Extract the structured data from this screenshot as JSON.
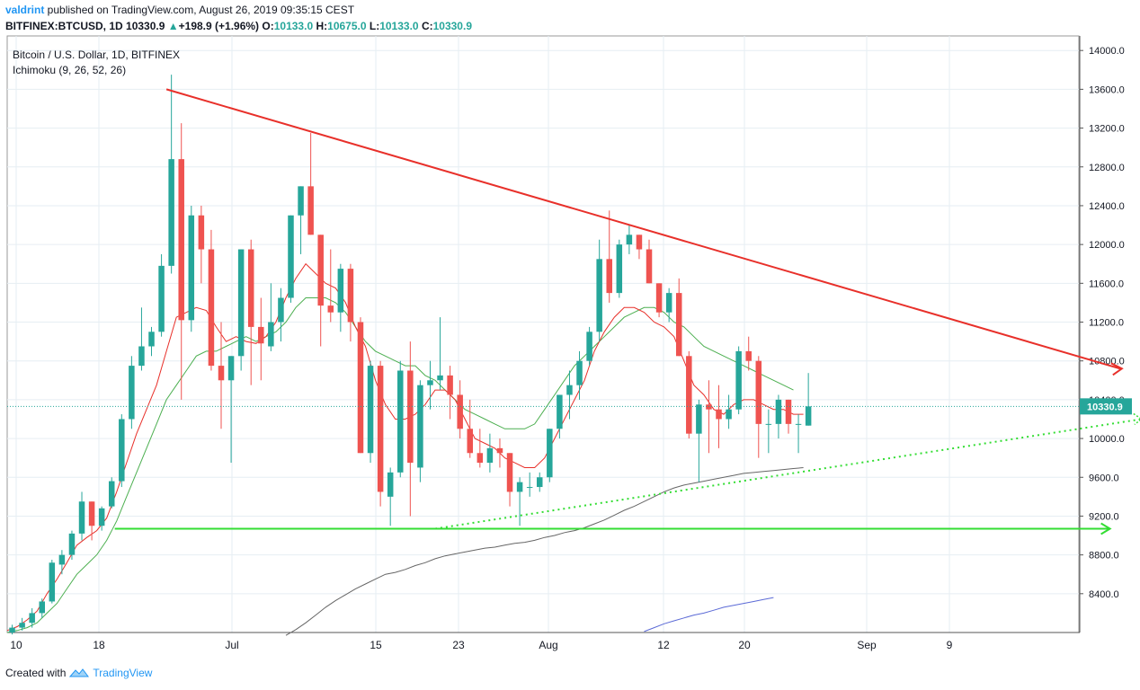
{
  "header": {
    "author": "valdrint",
    "published_text": " published on TradingView.com, August 26, 2019 09:35:15 CEST",
    "symbol": "BITFINEX:BTCUSD, 1D",
    "last": "10330.9",
    "change": "+198.9 (+1.96%)",
    "o_label": "O:",
    "o": "10133.0",
    "h_label": "H:",
    "h": "10675.0",
    "l_label": "L:",
    "l": "10133.0",
    "c_label": "C:",
    "c": "10330.9"
  },
  "legend": {
    "title": "Bitcoin / U.S. Dollar, 1D, BITFINEX",
    "indicator": "Ichimoku (9, 26, 52, 26)"
  },
  "footer": {
    "created_with": "Created with",
    "brand": "TradingView"
  },
  "colors": {
    "up": "#26a69a",
    "down": "#ef5350",
    "resistance": "#e8302a",
    "support": "#33dd33",
    "price_line": "#26a69a",
    "ma_red": "#e8302a",
    "ma_green": "#4caf50",
    "ma_gray": "#666666",
    "ma_blue": "#5b6ad6"
  },
  "chart_data": {
    "type": "candlestick",
    "y_ticks": [
      "14000.0",
      "13600.0",
      "13200.0",
      "12800.0",
      "12400.0",
      "12000.0",
      "11600.0",
      "11200.0",
      "10800.0",
      "10400.0",
      "10000.0",
      "9600.0",
      "9200.0",
      "8800.0",
      "8400.0"
    ],
    "x_ticks": [
      "10",
      "18",
      "Jul",
      "15",
      "23",
      "Aug",
      "12",
      "20",
      "Sep",
      "9"
    ],
    "ylim": [
      8000,
      14150
    ],
    "last_price_label": "10330.9",
    "candles": [
      [
        8000,
        8080,
        7980,
        8050
      ],
      [
        8050,
        8150,
        8020,
        8100
      ],
      [
        8100,
        8250,
        8050,
        8200
      ],
      [
        8200,
        8350,
        8150,
        8320
      ],
      [
        8320,
        8750,
        8300,
        8720
      ],
      [
        8700,
        8850,
        8600,
        8800
      ],
      [
        8800,
        9050,
        8750,
        9020
      ],
      [
        9020,
        9450,
        8950,
        9350
      ],
      [
        9350,
        9350,
        8950,
        9100
      ],
      [
        9100,
        9300,
        9050,
        9280
      ],
      [
        9300,
        9600,
        9280,
        9560
      ],
      [
        9560,
        10250,
        9500,
        10200
      ],
      [
        10200,
        10850,
        10100,
        10750
      ],
      [
        10750,
        11350,
        10700,
        10950
      ],
      [
        10950,
        11150,
        10850,
        11100
      ],
      [
        11100,
        11900,
        11050,
        11780
      ],
      [
        11780,
        13750,
        11700,
        12880
      ],
      [
        12880,
        13250,
        10400,
        11220
      ],
      [
        11220,
        12400,
        11100,
        12300
      ],
      [
        12300,
        12400,
        11600,
        11950
      ],
      [
        11950,
        12150,
        10700,
        10750
      ],
      [
        10750,
        11200,
        10100,
        10600
      ],
      [
        10600,
        10850,
        9750,
        10850
      ],
      [
        10850,
        11950,
        10700,
        11950
      ],
      [
        11950,
        12050,
        10550,
        11150
      ],
      [
        11150,
        11450,
        10600,
        10980
      ],
      [
        10950,
        11600,
        10900,
        11200
      ],
      [
        11200,
        11550,
        11000,
        11450
      ],
      [
        11450,
        12300,
        11400,
        12300
      ],
      [
        12300,
        12600,
        11900,
        12600
      ],
      [
        12600,
        13150,
        12100,
        12100
      ],
      [
        12100,
        12100,
        10950,
        11370
      ],
      [
        11370,
        11950,
        11200,
        11300
      ],
      [
        11300,
        11800,
        11100,
        11750
      ],
      [
        11750,
        11800,
        11000,
        11200
      ],
      [
        11200,
        11250,
        9850,
        9850
      ],
      [
        9850,
        10800,
        9750,
        10750
      ],
      [
        10750,
        10800,
        9300,
        9450
      ],
      [
        9400,
        9700,
        9100,
        9650
      ],
      [
        9650,
        10800,
        9600,
        10700
      ],
      [
        10700,
        11000,
        9200,
        9750
      ],
      [
        9700,
        10600,
        9550,
        10550
      ],
      [
        10550,
        10800,
        10300,
        10600
      ],
      [
        10600,
        11250,
        10500,
        10650
      ],
      [
        10650,
        10750,
        10200,
        10450
      ],
      [
        10450,
        10600,
        10000,
        10100
      ],
      [
        10100,
        10400,
        9800,
        9850
      ],
      [
        9850,
        10100,
        9700,
        9750
      ],
      [
        9750,
        10050,
        9650,
        9900
      ],
      [
        9900,
        10000,
        9700,
        9850
      ],
      [
        9850,
        9850,
        9300,
        9450
      ],
      [
        9450,
        9600,
        9100,
        9550
      ],
      [
        9500,
        9650,
        9400,
        9500
      ],
      [
        9500,
        9650,
        9450,
        9600
      ],
      [
        9600,
        10100,
        9550,
        10100
      ],
      [
        10100,
        10450,
        10000,
        10450
      ],
      [
        10450,
        10700,
        10200,
        10550
      ],
      [
        10550,
        10900,
        10400,
        10800
      ],
      [
        10800,
        11150,
        10750,
        11100
      ],
      [
        11100,
        12050,
        11000,
        11850
      ],
      [
        11850,
        12350,
        11400,
        11500
      ],
      [
        11500,
        12050,
        11450,
        12000
      ],
      [
        12000,
        12200,
        11900,
        12100
      ],
      [
        12100,
        12100,
        11850,
        11950
      ],
      [
        11950,
        12050,
        11600,
        11600
      ],
      [
        11600,
        11600,
        11250,
        11300
      ],
      [
        11300,
        11550,
        11200,
        11500
      ],
      [
        11500,
        11650,
        10850,
        10850
      ],
      [
        10850,
        10900,
        10000,
        10050
      ],
      [
        10050,
        10400,
        9550,
        10350
      ],
      [
        10350,
        10600,
        9850,
        10300
      ],
      [
        10300,
        10550,
        9900,
        10200
      ],
      [
        10200,
        10450,
        10100,
        10300
      ],
      [
        10300,
        10950,
        10250,
        10900
      ],
      [
        10900,
        11050,
        10700,
        10800
      ],
      [
        10800,
        10850,
        9800,
        10150
      ],
      [
        10150,
        10300,
        9850,
        10150
      ],
      [
        10150,
        10450,
        10000,
        10400
      ],
      [
        10400,
        10400,
        10050,
        10150
      ],
      [
        10150,
        10250,
        9850,
        10150
      ],
      [
        10133,
        10675,
        10133,
        10330.9
      ]
    ],
    "x_start_candle_index": 0,
    "resistance_line": {
      "from": [
        16,
        13600
      ],
      "to": [
        112,
        10720
      ]
    },
    "support_line": {
      "from": [
        9,
        9070
      ],
      "to": [
        109,
        9070
      ]
    },
    "rising_support": {
      "from": [
        43,
        9070
      ],
      "to": [
        112,
        10200
      ]
    },
    "ma_red": [
      8020,
      8060,
      8130,
      8220,
      8400,
      8550,
      8720,
      8900,
      8980,
      9050,
      9180,
      9450,
      9750,
      10050,
      10300,
      10550,
      10900,
      11250,
      11300,
      11350,
      11320,
      11150,
      11000,
      11050,
      11000,
      10980,
      11050,
      11200,
      11450,
      11650,
      11800,
      11700,
      11600,
      11550,
      11400,
      11150,
      10950,
      10600,
      10350,
      10200,
      10200,
      10250,
      10350,
      10500,
      10500,
      10400,
      10200,
      10000,
      9950,
      9900,
      9800,
      9750,
      9700,
      9700,
      9800,
      10000,
      10200,
      10400,
      10600,
      10900,
      11100,
      11250,
      11350,
      11350,
      11300,
      11200,
      11150,
      11050,
      10800,
      10550,
      10450,
      10300,
      10250,
      10350,
      10400,
      10400,
      10350,
      10300,
      10300,
      10250,
      10250
    ],
    "ma_green": [
      8000,
      8020,
      8050,
      8100,
      8200,
      8300,
      8450,
      8600,
      8700,
      8800,
      8950,
      9150,
      9400,
      9650,
      9900,
      10150,
      10400,
      10550,
      10700,
      10850,
      10900,
      10900,
      10950,
      11000,
      11050,
      11000,
      11050,
      11100,
      11200,
      11350,
      11450,
      11450,
      11450,
      11400,
      11300,
      11150,
      11000,
      10900,
      10850,
      10800,
      10750,
      10750,
      10650,
      10600,
      10500,
      10400,
      10300,
      10250,
      10200,
      10150,
      10100,
      10100,
      10100,
      10150,
      10300,
      10450,
      10600,
      10750,
      10850,
      10950,
      11050,
      11150,
      11250,
      11300,
      11350,
      11350,
      11300,
      11200,
      11150,
      11050,
      10950,
      10900,
      10850,
      10800,
      10750,
      10700,
      10650,
      10600,
      10550,
      10500
    ],
    "ma_gray": {
      "start_index": 28,
      "values": [
        7970,
        8030,
        8100,
        8180,
        8260,
        8330,
        8390,
        8450,
        8500,
        8550,
        8600,
        8620,
        8650,
        8690,
        8720,
        8760,
        8790,
        8810,
        8830,
        8850,
        8870,
        8880,
        8900,
        8920,
        8930,
        8950,
        8980,
        9000,
        9030,
        9050,
        9080,
        9120,
        9160,
        9210,
        9260,
        9300,
        9350,
        9400,
        9450,
        9490,
        9520,
        9540,
        9560,
        9580,
        9600,
        9620,
        9640,
        9650,
        9660,
        9670,
        9680,
        9690,
        9700
      ]
    },
    "ma_blue": {
      "start_index": 64,
      "values": [
        8010,
        8050,
        8090,
        8120,
        8150,
        8180,
        8200,
        8230,
        8260,
        8280,
        8300,
        8320,
        8340,
        8360
      ]
    }
  }
}
